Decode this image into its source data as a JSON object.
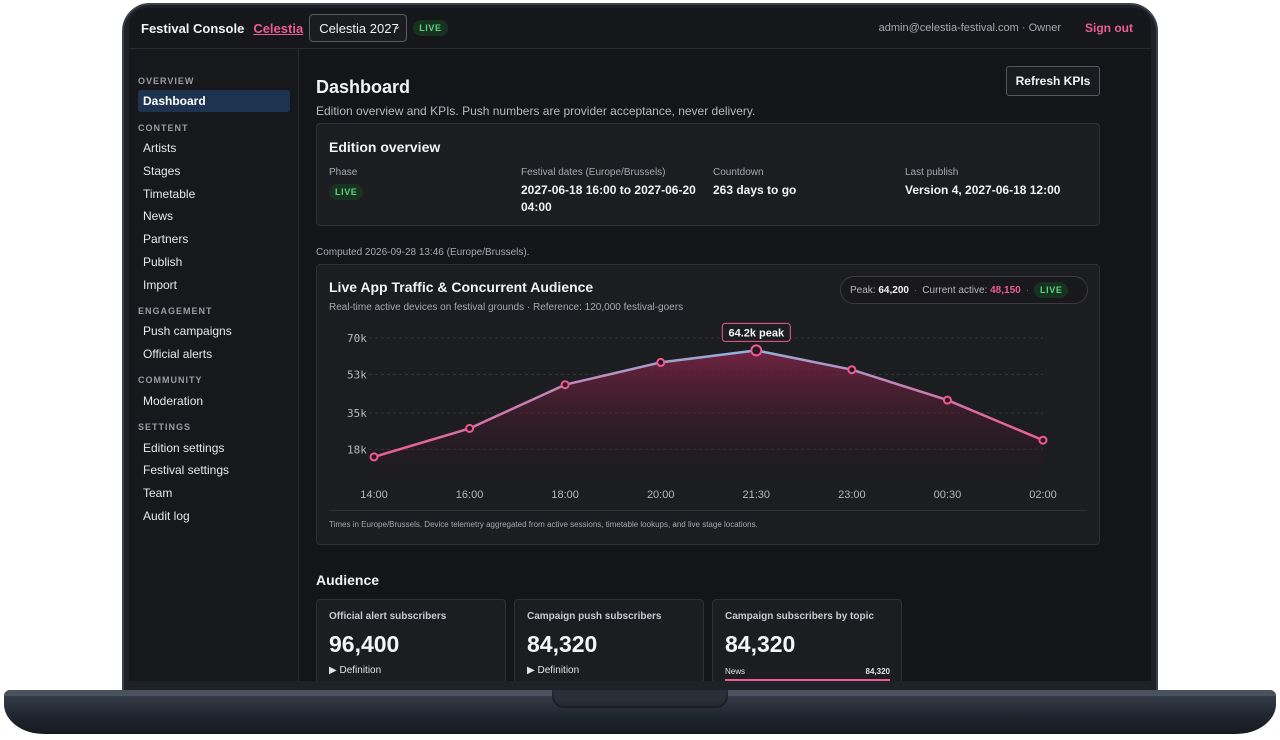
{
  "topbar": {
    "brand": "Festival Console",
    "org_link": "Celestia",
    "edition_select": "Celestia 2027",
    "live_badge": "LIVE",
    "account": "admin@celestia-festival.com · Owner",
    "sign_out": "Sign out"
  },
  "sidebar": {
    "sections": [
      {
        "label": "OVERVIEW",
        "items": [
          "Dashboard"
        ]
      },
      {
        "label": "CONTENT",
        "items": [
          "Artists",
          "Stages",
          "Timetable",
          "News",
          "Partners",
          "Publish",
          "Import"
        ]
      },
      {
        "label": "ENGAGEMENT",
        "items": [
          "Push campaigns",
          "Official alerts"
        ]
      },
      {
        "label": "COMMUNITY",
        "items": [
          "Moderation"
        ]
      },
      {
        "label": "SETTINGS",
        "items": [
          "Edition settings",
          "Festival settings",
          "Team",
          "Audit log"
        ]
      }
    ],
    "active": "Dashboard"
  },
  "page": {
    "title": "Dashboard",
    "subtitle": "Edition overview and KPIs. Push numbers are provider acceptance, never delivery.",
    "refresh_button": "Refresh KPIs"
  },
  "overview": {
    "title": "Edition overview",
    "phase_label": "Phase",
    "phase_badge": "LIVE",
    "dates_label": "Festival dates (Europe/Brussels)",
    "dates_line1": "2027-06-18 16:00 to 2027-06-20",
    "dates_line2": "04:00",
    "countdown_label": "Countdown",
    "countdown_value": "263 days to go",
    "publish_label": "Last publish",
    "publish_value": "Version 4, 2027-06-18 12:00"
  },
  "computed": "Computed 2026-09-28 13:46 (Europe/Brussels).",
  "traffic": {
    "title": "Live App Traffic & Concurrent Audience",
    "subtitle": "Real-time active devices on festival grounds · Reference: 120,000 festival-goers",
    "peak_label": "Peak:",
    "peak_value": "64,200",
    "current_label": "Current active:",
    "current_value": "48,150",
    "live_badge": "LIVE",
    "peak_annotation": "64.2k peak",
    "footnote": "Times in Europe/Brussels. Device telemetry aggregated from active sessions, timetable lookups, and live stage locations."
  },
  "chart_data": {
    "type": "area",
    "x": [
      "14:00",
      "16:00",
      "18:00",
      "20:00",
      "21:30",
      "23:00",
      "00:30",
      "02:00"
    ],
    "y_tick_labels": [
      "70k",
      "53k",
      "35k",
      "18k"
    ],
    "y_ticks": [
      70000,
      53000,
      35000,
      18000
    ],
    "ylim": [
      14000,
      70000
    ],
    "series": [
      {
        "values": [
          14500,
          27800,
          48200,
          58600,
          64200,
          55200,
          41000,
          22300
        ]
      }
    ],
    "annotations": [
      "64.2k peak"
    ],
    "colors": {
      "start": "#ef5a93",
      "mid": "#8fb2da",
      "end": "#ef5a93",
      "fill": "#7a2446"
    },
    "grid": true
  },
  "audience": {
    "title": "Audience",
    "cards": [
      {
        "title": "Official alert subscribers",
        "value": "96,400",
        "definition": "Definition"
      },
      {
        "title": "Campaign push subscribers",
        "value": "84,320",
        "definition": "Definition"
      },
      {
        "title": "Campaign subscribers by topic",
        "value": "84,320",
        "topic": "News",
        "topic_value": "84,320"
      }
    ]
  }
}
